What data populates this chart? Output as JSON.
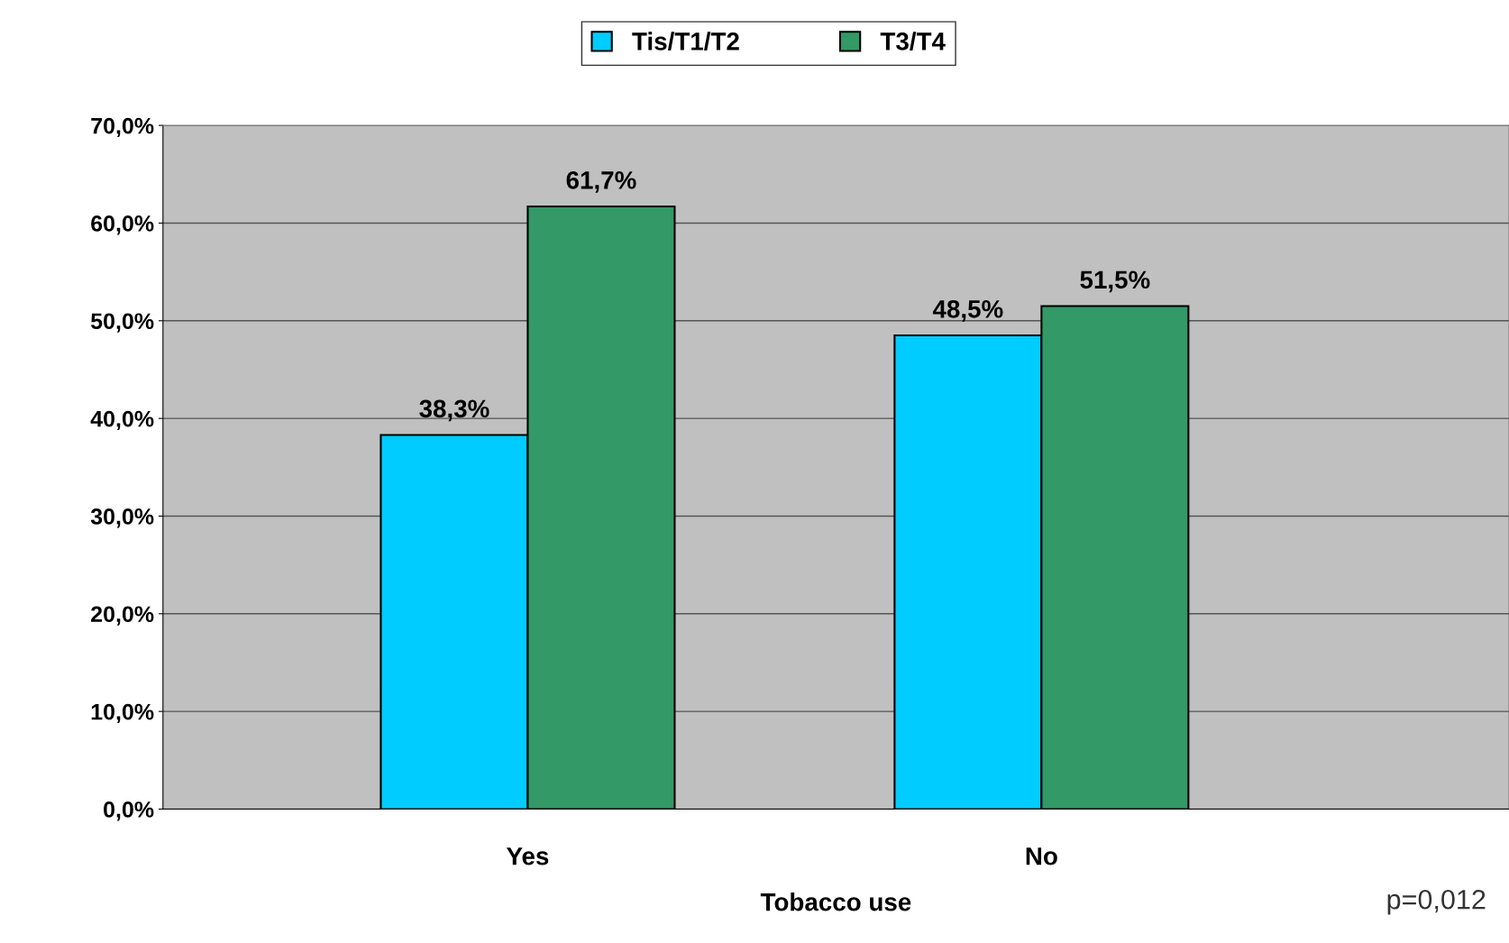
{
  "chart_data": {
    "type": "bar",
    "xlabel": "Tobacco use",
    "categories": [
      "Yes",
      "No"
    ],
    "series": [
      {
        "name": "Tis/T1/T2",
        "color": "#00ccff",
        "values": [
          38.3,
          48.5
        ],
        "value_labels": [
          "38,3%",
          "48,5%"
        ]
      },
      {
        "name": "T3/T4",
        "color": "#339966",
        "values": [
          61.7,
          51.5
        ],
        "value_labels": [
          "61,7%",
          "51,5%"
        ]
      }
    ],
    "ylim": [
      0,
      70
    ],
    "yticks": [
      {
        "value": 0,
        "label": "0,0%"
      },
      {
        "value": 10,
        "label": "10,0%"
      },
      {
        "value": 20,
        "label": "20,0%"
      },
      {
        "value": 30,
        "label": "30,0%"
      },
      {
        "value": 40,
        "label": "40,0%"
      },
      {
        "value": 50,
        "label": "50,0%"
      },
      {
        "value": 60,
        "label": "60,0%"
      },
      {
        "value": 70,
        "label": "70,0%"
      }
    ],
    "grid": "y",
    "legend": "top",
    "annotations": [
      "p=0,012"
    ]
  }
}
